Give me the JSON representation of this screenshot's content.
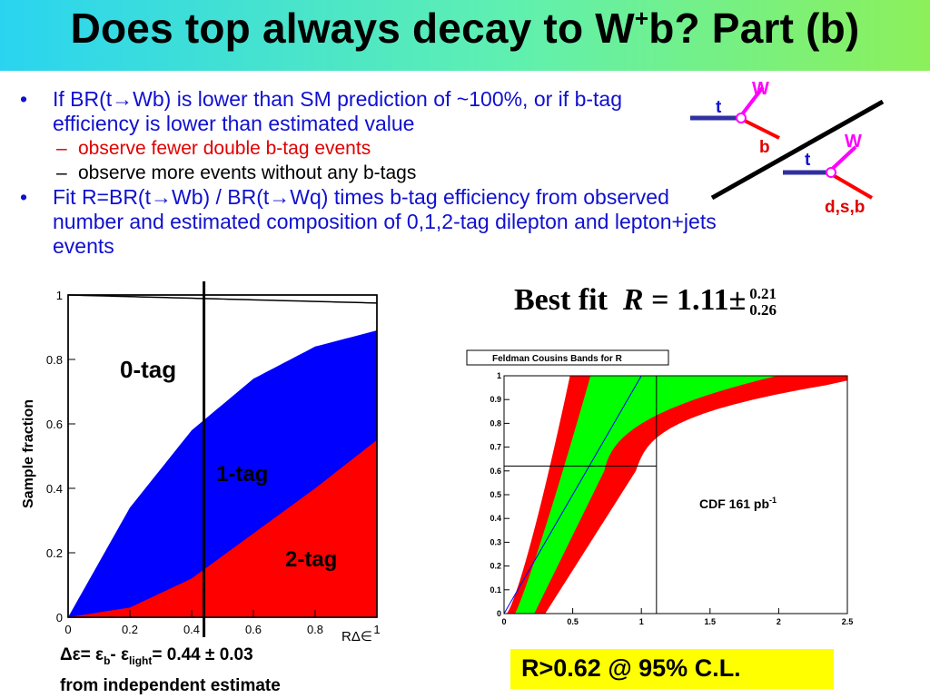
{
  "slide": {
    "title_main": "Does top always decay to W",
    "title_sup": "+",
    "title_end": "b? Part (b)"
  },
  "bullets": [
    {
      "text": "If BR(t→Wb) is lower than SM prediction of ~100%, or if b-tag efficiency is lower than estimated value",
      "subs": [
        {
          "text": "observe fewer double b-tag events",
          "color": "red"
        },
        {
          "text": "observe more events without any b-tags",
          "color": "black"
        }
      ]
    },
    {
      "text": "Fit R=BR(t→Wb) / BR(t→Wq)  times b-tag efficiency from observed number and estimated composition of 0,1,2-tag dilepton and lepton+jets events",
      "subs": []
    }
  ],
  "diagram": {
    "top1_label": "t",
    "w1_label": "W",
    "b1_label": "b",
    "top2_label": "t",
    "w2_label": "W",
    "q2_label": "d,s,b"
  },
  "fit": {
    "prefix": "Best fit",
    "var": "R",
    "eq": "=",
    "value": "1.11",
    "pm": "±",
    "plus": "0.21",
    "minus": "0.26"
  },
  "left_chart": {
    "ylabel": "Sample fraction",
    "xlabel": "RΔ∈",
    "label_0tag": "0-tag",
    "label_1tag": "1-tag",
    "label_2tag": "2-tag",
    "x_ticks": [
      "0",
      "0.2",
      "0.4",
      "0.6",
      "0.8",
      "1"
    ],
    "y_ticks": [
      "0",
      "0.2",
      "0.4",
      "0.6",
      "0.8",
      "1"
    ],
    "cut_x": 0.44,
    "colors": {
      "zero": "#ffffff",
      "one": "#0000ff",
      "two": "#ff0000"
    }
  },
  "right_chart": {
    "title": "Feldman Cousins Bands for R",
    "label": "CDF 161 pb",
    "label_sup": "-1",
    "x_ticks": [
      "0",
      "0.5",
      "1",
      "1.5",
      "2",
      "2.5"
    ],
    "y_ticks": [
      "0",
      "0.1",
      "0.2",
      "0.3",
      "0.4",
      "0.5",
      "0.6",
      "0.7",
      "0.8",
      "0.9",
      "1"
    ],
    "measured_R": 1.11,
    "limit": 0.62,
    "colors": {
      "outer": "#ff0000",
      "inner": "#00ff00",
      "line": "#0000ff"
    }
  },
  "caption": {
    "delta": "Δε= ε",
    "sub_b": "b",
    "minus": "- ε",
    "sub_light": "light",
    "value": "= 0.44 ± 0.03",
    "line2": "from independent estimate"
  },
  "result": {
    "text": "R>0.62 @ 95% C.L."
  },
  "chart_data": [
    {
      "type": "area",
      "xlabel": "RΔ∈",
      "ylabel": "Sample fraction",
      "xlim": [
        0,
        1
      ],
      "ylim": [
        0,
        1
      ],
      "x": [
        0,
        0.2,
        0.4,
        0.6,
        0.8,
        1.0
      ],
      "series": [
        {
          "name": "2-tag",
          "values": [
            0.0,
            0.03,
            0.12,
            0.26,
            0.4,
            0.55
          ]
        },
        {
          "name": "1-tag",
          "values": [
            0.0,
            0.34,
            0.58,
            0.74,
            0.84,
            0.89
          ]
        },
        {
          "name": "0-tag",
          "values": [
            1.0,
            0.995,
            0.99,
            0.985,
            0.98,
            0.975
          ]
        }
      ],
      "vertical_line_x": 0.44
    },
    {
      "type": "area",
      "title": "Feldman Cousins Bands for R",
      "xlim": [
        0,
        2.5
      ],
      "ylim": [
        0,
        1
      ],
      "annotation": "CDF 161 pb-1",
      "measured": {
        "x": 1.11,
        "y": 0.62
      }
    }
  ]
}
